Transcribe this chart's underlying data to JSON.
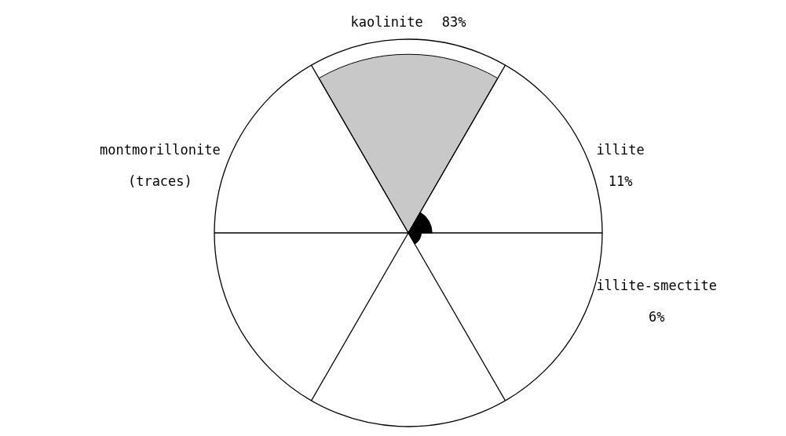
{
  "chart_data": {
    "type": "other",
    "categories": [
      "kaolinite",
      "illite",
      "illite-smectite",
      null,
      null,
      "montmorillonite"
    ],
    "values": [
      83,
      11,
      6,
      null,
      null,
      null
    ],
    "value_labels": [
      "83%",
      "11%",
      "6%",
      null,
      null,
      "(traces)"
    ],
    "colors": [
      "#c8c8c8",
      "#000000",
      "#000000",
      "#000000",
      "#000000",
      "#000000"
    ]
  }
}
